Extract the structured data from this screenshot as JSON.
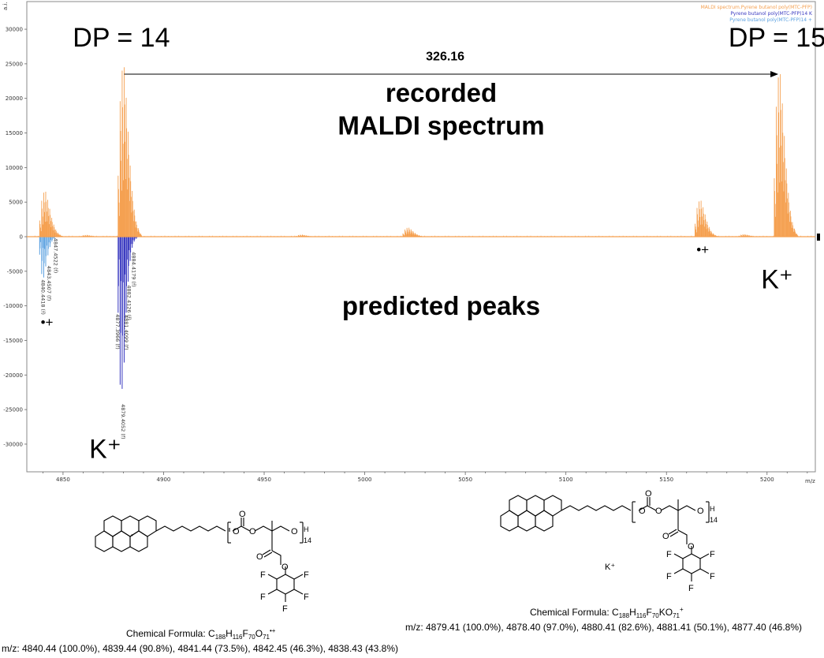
{
  "chart_data": {
    "type": "line",
    "xlabel": "m/z",
    "ylabel": "a.i.",
    "xlim": [
      4832,
      5224
    ],
    "ylim": [
      -34000,
      34000
    ],
    "x_ticks": [
      4850,
      4900,
      4950,
      5000,
      5050,
      5100,
      5150,
      5200
    ],
    "y_ticks": [
      -30000,
      -25000,
      -20000,
      -15000,
      -10000,
      -5000,
      0,
      5000,
      10000,
      15000,
      20000,
      25000,
      30000
    ],
    "legend_position": "top-right",
    "series": [
      {
        "name": "MALDI spectrum.Pyrene butanol poly(MTC-PFP)",
        "color": "#f5a050",
        "clusters": [
          {
            "center": 4840.4,
            "max": 6500
          },
          {
            "center": 4879.4,
            "max": 24500
          },
          {
            "center": 4861.0,
            "max": 250
          },
          {
            "center": 4968.0,
            "max": 300
          },
          {
            "center": 5021.0,
            "max": 1300
          },
          {
            "center": 5166.2,
            "max": 5200
          },
          {
            "center": 5188.0,
            "max": 350
          },
          {
            "center": 5205.6,
            "max": 23500
          }
        ]
      },
      {
        "name": "Pyrene butanol poly(MTC-PFP)14 K",
        "color": "#3838c0",
        "peaks": [
          {
            "x": 4877.4,
            "y": -11000
          },
          {
            "x": 4878.4,
            "y": -21400
          },
          {
            "x": 4879.4,
            "y": -22000
          },
          {
            "x": 4880.4,
            "y": -18200
          },
          {
            "x": 4881.4,
            "y": -11000
          },
          {
            "x": 4882.4,
            "y": -6500
          },
          {
            "x": 4883.4,
            "y": -3500
          },
          {
            "x": 4884.4,
            "y": -1600
          },
          {
            "x": 4885.4,
            "y": -700
          },
          {
            "x": 4886.4,
            "y": -300
          }
        ]
      },
      {
        "name": "Pyrene butanol poly(MTC-PFP)14 +",
        "color": "#5aa0e0",
        "peaks": [
          {
            "x": 4838.4,
            "y": -2600
          },
          {
            "x": 4839.4,
            "y": -5400
          },
          {
            "x": 4840.4,
            "y": -5900
          },
          {
            "x": 4841.4,
            "y": -4300
          },
          {
            "x": 4842.5,
            "y": -2700
          },
          {
            "x": 4843.5,
            "y": -1500
          },
          {
            "x": 4844.5,
            "y": -700
          },
          {
            "x": 4845.5,
            "y": -300
          }
        ]
      }
    ],
    "peak_labels": [
      {
        "text": "4840.4418 (f)",
        "x": 4839.2,
        "y": -6200
      },
      {
        "text": "4843.4507 (f)",
        "x": 4842.2,
        "y": -4200
      },
      {
        "text": "4847.4522 (f)",
        "x": 4845.6,
        "y": -200
      },
      {
        "text": "4877.3966 (f)",
        "x": 4876.3,
        "y": -11200
      },
      {
        "text": "4879.4052 (f)",
        "x": 4879.0,
        "y": -24200
      },
      {
        "text": "4881.4099 (f)",
        "x": 4880.7,
        "y": -11300
      },
      {
        "text": "4882.4126 (f)",
        "x": 4882.0,
        "y": -7000
      },
      {
        "text": "4884.4179 (f)",
        "x": 4884.3,
        "y": -2200
      }
    ],
    "annotations": [
      {
        "text": "DP = 14",
        "kind": "big",
        "x": 4879,
        "y": 27500
      },
      {
        "text": "DP = 15",
        "kind": "big",
        "x": 5205,
        "y": 27500
      },
      {
        "text": "326.16",
        "kind": "bold",
        "x": 5040,
        "y": 25500
      },
      {
        "text": "recorded",
        "kind": "bold-large",
        "x": 5038,
        "y": 19500
      },
      {
        "text": "MALDI spectrum",
        "kind": "bold-large",
        "x": 5038,
        "y": 14800
      },
      {
        "text": "predicted peaks",
        "kind": "bold-large",
        "x": 5038,
        "y": -11300
      },
      {
        "text": "K⁺",
        "kind": "big",
        "x": 4871,
        "y": -32000
      },
      {
        "text": "K⁺",
        "kind": "big",
        "x": 5205,
        "y": -7500
      },
      {
        "text": "•+",
        "kind": "small",
        "x": 4842,
        "y": -13000
      },
      {
        "text": "•+",
        "kind": "small",
        "x": 5168,
        "y": -2500
      }
    ],
    "arrow": {
      "from": [
        4880.4,
        23500
      ],
      "to": [
        5205.6,
        23500
      ]
    }
  },
  "structures": {
    "left": {
      "subscript_h": "H",
      "subscript_n": "14",
      "formula_label": "Chemical Formula: ",
      "formula_parts": [
        "C",
        "188",
        "H",
        "116",
        "F",
        "70",
        "O",
        "71",
        "•+"
      ],
      "mz_line": "m/z: 4840.44 (100.0%), 4839.44 (90.8%), 4841.44 (73.5%), 4842.45 (46.3%), 4838.43 (43.8%)"
    },
    "right": {
      "subscript_h": "H",
      "subscript_n": "14",
      "counter_ion": "K⁺",
      "formula_label": "Chemical Formula: ",
      "formula_parts": [
        "C",
        "188",
        "H",
        "116",
        "F",
        "70",
        "K",
        "",
        "O",
        "71",
        "+"
      ],
      "mz_line": "m/z: 4879.41 (100.0%), 4878.40 (97.0%), 4880.41 (82.6%), 4881.41 (50.1%), 4877.40 (46.8%)"
    },
    "atoms": {
      "O": "O",
      "F": "F"
    }
  }
}
